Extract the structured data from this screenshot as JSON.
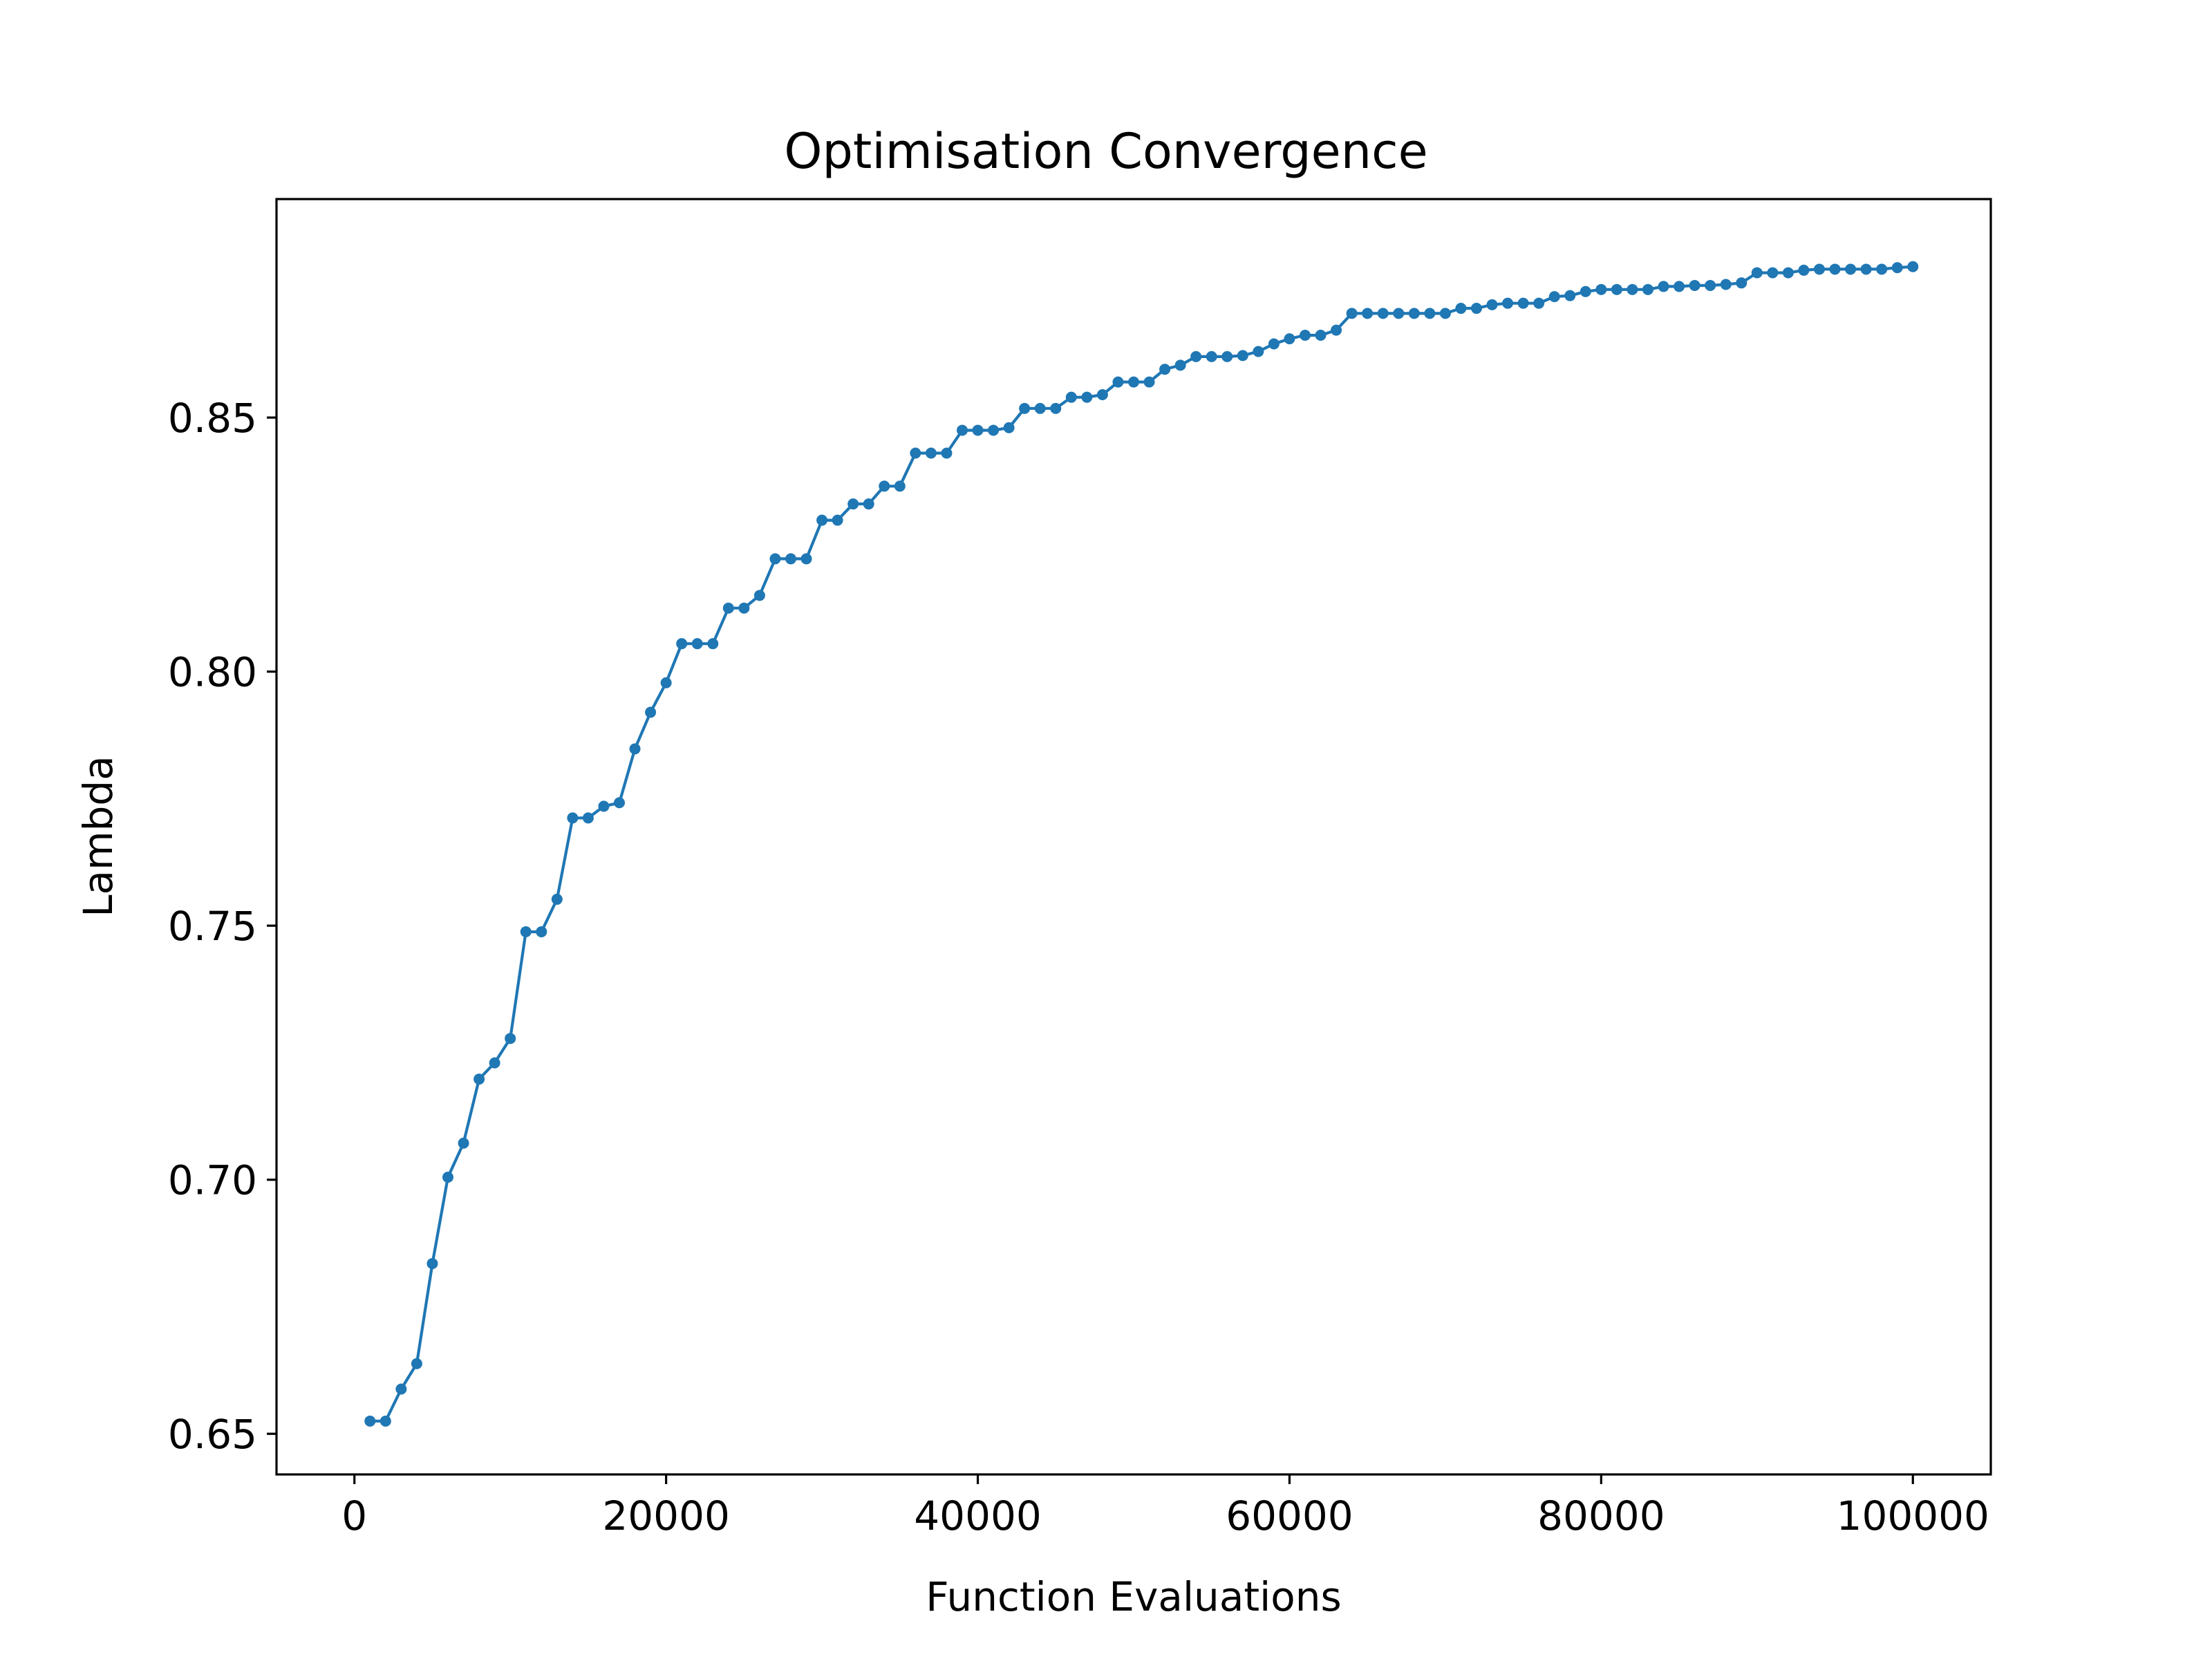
{
  "chart_data": {
    "type": "line",
    "title": "Optimisation Convergence",
    "xlabel": "Function Evaluations",
    "ylabel": "Lambda",
    "xlim": [
      -5000,
      105000
    ],
    "ylim": [
      0.642,
      0.893
    ],
    "xticks": [
      0,
      20000,
      40000,
      60000,
      80000,
      100000
    ],
    "xtick_labels": [
      "0",
      "20000",
      "40000",
      "60000",
      "80000",
      "100000"
    ],
    "yticks": [
      0.65,
      0.7,
      0.75,
      0.8,
      0.85
    ],
    "ytick_labels": [
      "0.65",
      "0.70",
      "0.75",
      "0.80",
      "0.85"
    ],
    "grid": false,
    "series": [
      {
        "color": "#1f77b4",
        "marker": "circle",
        "x": [
          1000,
          2000,
          3000,
          4000,
          5000,
          6000,
          7000,
          8000,
          9000,
          10000,
          11000,
          12000,
          13000,
          14000,
          15000,
          16000,
          17000,
          18000,
          19000,
          20000,
          21000,
          22000,
          23000,
          24000,
          25000,
          26000,
          27000,
          28000,
          29000,
          30000,
          31000,
          32000,
          33000,
          34000,
          35000,
          36000,
          37000,
          38000,
          39000,
          40000,
          41000,
          42000,
          43000,
          44000,
          45000,
          46000,
          47000,
          48000,
          49000,
          50000,
          51000,
          52000,
          53000,
          54000,
          55000,
          56000,
          57000,
          58000,
          59000,
          60000,
          61000,
          62000,
          63000,
          64000,
          65000,
          66000,
          67000,
          68000,
          69000,
          70000,
          71000,
          72000,
          73000,
          74000,
          75000,
          76000,
          77000,
          78000,
          79000,
          80000,
          81000,
          82000,
          83000,
          84000,
          85000,
          86000,
          87000,
          88000,
          89000,
          90000,
          91000,
          92000,
          93000,
          94000,
          95000,
          96000,
          97000,
          98000,
          99000,
          100000
        ],
        "y": [
          0.6525,
          0.6525,
          0.6588,
          0.6638,
          0.6835,
          0.7005,
          0.7072,
          0.7198,
          0.723,
          0.7278,
          0.7488,
          0.7488,
          0.7552,
          0.7712,
          0.7712,
          0.7735,
          0.7742,
          0.7848,
          0.792,
          0.7978,
          0.8055,
          0.8055,
          0.8055,
          0.8125,
          0.8125,
          0.815,
          0.8222,
          0.8222,
          0.8222,
          0.8298,
          0.8298,
          0.833,
          0.833,
          0.8365,
          0.8365,
          0.843,
          0.843,
          0.843,
          0.8475,
          0.8475,
          0.8475,
          0.848,
          0.8518,
          0.8518,
          0.8518,
          0.854,
          0.854,
          0.8545,
          0.857,
          0.857,
          0.857,
          0.8595,
          0.8603,
          0.862,
          0.862,
          0.862,
          0.8622,
          0.863,
          0.8645,
          0.8655,
          0.8662,
          0.8662,
          0.8672,
          0.8705,
          0.8705,
          0.8705,
          0.8705,
          0.8705,
          0.8705,
          0.8705,
          0.8715,
          0.8715,
          0.8722,
          0.8725,
          0.8725,
          0.8725,
          0.8738,
          0.874,
          0.8748,
          0.8752,
          0.8752,
          0.8752,
          0.8752,
          0.8758,
          0.8758,
          0.876,
          0.876,
          0.8762,
          0.8765,
          0.8785,
          0.8785,
          0.8785,
          0.879,
          0.8792,
          0.8792,
          0.8792,
          0.8792,
          0.8792,
          0.8795,
          0.8797
        ]
      }
    ]
  }
}
